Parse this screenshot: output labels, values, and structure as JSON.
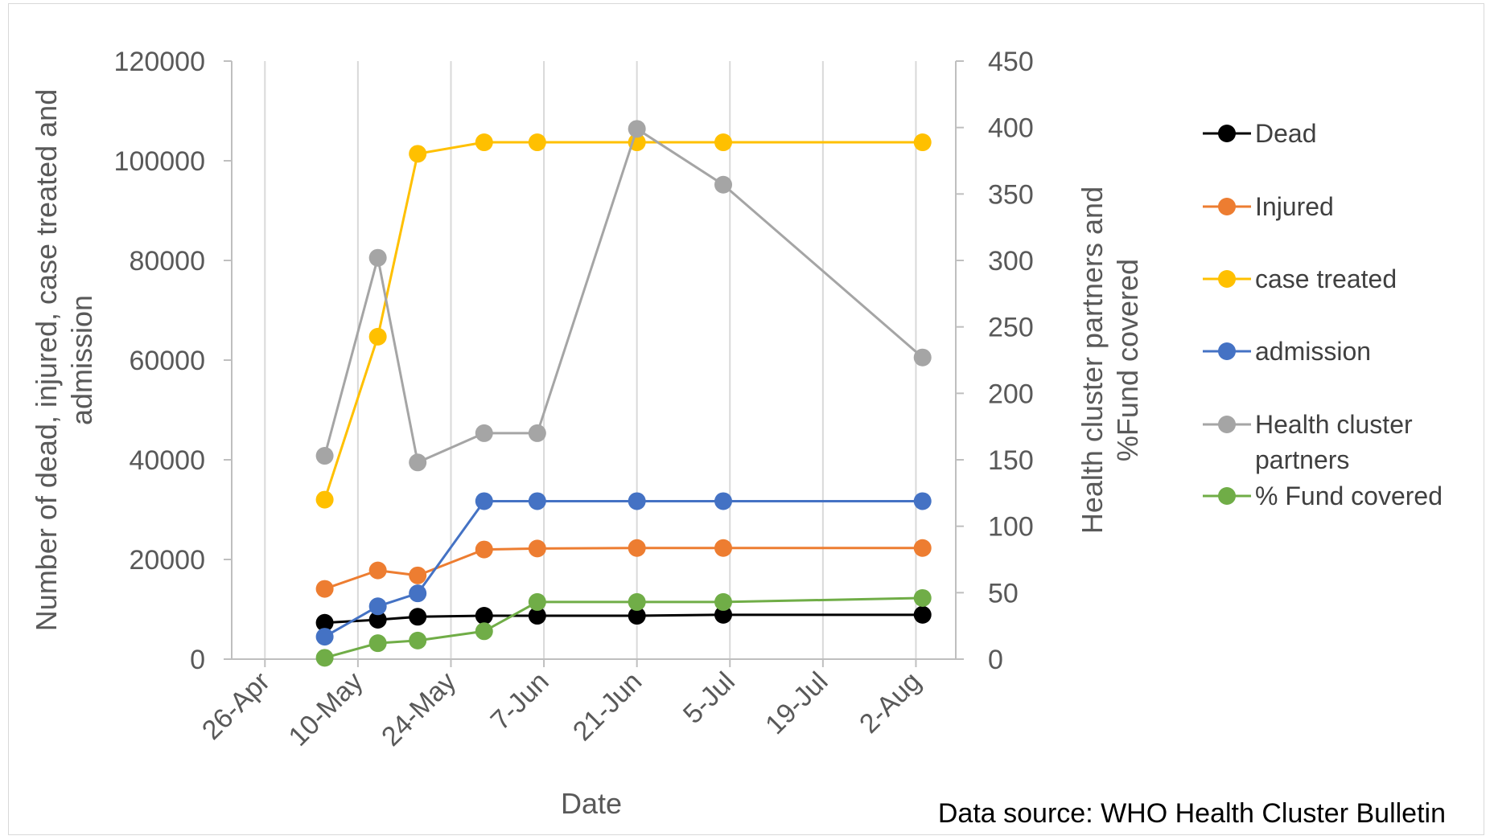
{
  "chart_data": {
    "type": "line",
    "xlabel": "Date",
    "ylabel_left": "Number of dead, injured, case treated and admission",
    "ylabel_right": "Health cluster partners and %Fund covered",
    "left_axis": {
      "min": 0,
      "max": 120000,
      "step": 20000,
      "tick_labels": [
        "0",
        "20000",
        "40000",
        "60000",
        "80000",
        "100000",
        "120000"
      ]
    },
    "right_axis": {
      "min": 0,
      "max": 450,
      "step": 50,
      "tick_labels": [
        "0",
        "50",
        "100",
        "150",
        "200",
        "250",
        "300",
        "350",
        "400",
        "450"
      ]
    },
    "x_axis": {
      "min_date": "2017-04-21",
      "max_date": "2017-08-08",
      "tick_dates": [
        "2017-04-26",
        "2017-05-10",
        "2017-05-24",
        "2017-06-07",
        "2017-06-21",
        "2017-07-05",
        "2017-07-19",
        "2017-08-02"
      ],
      "tick_labels": [
        "26-Apr",
        "10-May",
        "24-May",
        "7-Jun",
        "21-Jun",
        "5-Jul",
        "19-Jul",
        "2-Aug"
      ]
    },
    "grid": "vertical",
    "legend_position": "right",
    "series": [
      {
        "name": "Dead",
        "axis": "left",
        "color": "#000000",
        "x": [
          "2017-05-05",
          "2017-05-13",
          "2017-05-19",
          "2017-05-29",
          "2017-06-06",
          "2017-06-21",
          "2017-07-04",
          "2017-08-03"
        ],
        "values": [
          7300,
          7900,
          8500,
          8700,
          8700,
          8700,
          8900,
          8900
        ]
      },
      {
        "name": "Injured",
        "axis": "left",
        "color": "#ED7D31",
        "x": [
          "2017-05-05",
          "2017-05-13",
          "2017-05-19",
          "2017-05-29",
          "2017-06-06",
          "2017-06-21",
          "2017-07-04",
          "2017-08-03"
        ],
        "values": [
          14100,
          17800,
          16800,
          22000,
          22200,
          22300,
          22300,
          22300
        ]
      },
      {
        "name": "case treated",
        "axis": "left",
        "color": "#FFC000",
        "x": [
          "2017-05-05",
          "2017-05-13",
          "2017-05-19",
          "2017-05-29",
          "2017-06-06",
          "2017-06-21",
          "2017-07-04",
          "2017-08-03"
        ],
        "values": [
          32000,
          64700,
          101400,
          103700,
          103700,
          103700,
          103700,
          103700
        ]
      },
      {
        "name": "admission",
        "axis": "left",
        "color": "#4472C4",
        "x": [
          "2017-05-05",
          "2017-05-13",
          "2017-05-19",
          "2017-05-29",
          "2017-06-06",
          "2017-06-21",
          "2017-07-04",
          "2017-08-03"
        ],
        "values": [
          4500,
          10600,
          13200,
          31700,
          31700,
          31700,
          31700,
          31700
        ]
      },
      {
        "name": "Health cluster partners",
        "axis": "right",
        "color": "#A5A5A5",
        "x": [
          "2017-05-05",
          "2017-05-13",
          "2017-05-19",
          "2017-05-29",
          "2017-06-06",
          "2017-06-21",
          "2017-07-04",
          "2017-08-03"
        ],
        "values": [
          153,
          302,
          148,
          170,
          170,
          399,
          357,
          227
        ]
      },
      {
        "name": "% Fund  covered",
        "axis": "right",
        "color": "#70AD47",
        "x": [
          "2017-05-05",
          "2017-05-13",
          "2017-05-19",
          "2017-05-29",
          "2017-06-06",
          "2017-06-21",
          "2017-07-04",
          "2017-08-03"
        ],
        "values": [
          1,
          12,
          14,
          21,
          43,
          43,
          43,
          46
        ]
      }
    ],
    "legend_lines": {
      "Dead": [
        "Dead"
      ],
      "Injured": [
        "Injured"
      ],
      "case treated": [
        "case treated"
      ],
      "admission": [
        "admission"
      ],
      "Health cluster partners": [
        "Health cluster",
        "partners"
      ],
      "% Fund  covered": [
        "% Fund  covered"
      ]
    },
    "source_note": "Data source: WHO Health Cluster Bulletin"
  }
}
